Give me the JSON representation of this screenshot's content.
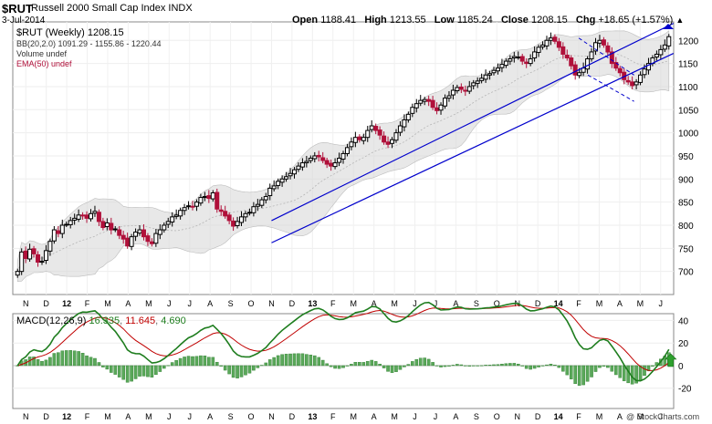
{
  "header": {
    "symbol": "$RUT",
    "name": "Russell 2000 Small Cap Index",
    "exchange": "INDX",
    "date": "3-Jul-2014",
    "open_label": "Open",
    "open": "1188.41",
    "high_label": "High",
    "high": "1213.55",
    "low_label": "Low",
    "low": "1185.24",
    "close_label": "Close",
    "close": "1208.15",
    "chg_label": "Chg",
    "chg": "+18.65 (+1.57%)",
    "chg_arrow": "▲"
  },
  "legend": {
    "price": "$RUT (Weekly) 1208.15",
    "bb": "BB(20,2.0) 1091.29 - 1155.86 - 1220.44",
    "volume": "Volume undef",
    "ema": "EMA(50) undef",
    "macd_title": "MACD(12,26,9)",
    "macd_v1": "16.335",
    "macd_v2": "11.645",
    "macd_v3": "4.690"
  },
  "brand": "@ StockCharts.com",
  "colors": {
    "up": "#000000",
    "down": "#b0103a",
    "band": "#d9d9d9",
    "channel": "#0000cc",
    "macd_line": "#1e7d1e",
    "signal_line": "#c00000",
    "hist": "#5aa85a",
    "ema_legend": "#b0103a"
  },
  "chart_data": [
    {
      "type": "candlestick",
      "title": "$RUT (Weekly) 1208.15",
      "ylim": [
        650,
        1240
      ],
      "y_ticks": [
        700,
        750,
        800,
        850,
        900,
        950,
        1000,
        1050,
        1100,
        1150,
        1200
      ],
      "x_month_labels": [
        "N",
        "D",
        "12",
        "F",
        "M",
        "A",
        "M",
        "J",
        "J",
        "A",
        "S",
        "O",
        "N",
        "D",
        "13",
        "F",
        "M",
        "A",
        "M",
        "J",
        "J",
        "A",
        "S",
        "O",
        "N",
        "D",
        "14",
        "F",
        "M",
        "A",
        "M",
        "J"
      ],
      "weekly_close": [
        700,
        742,
        728,
        748,
        738,
        720,
        722,
        745,
        765,
        790,
        782,
        800,
        802,
        810,
        815,
        822,
        820,
        815,
        825,
        830,
        808,
        795,
        805,
        790,
        792,
        778,
        770,
        755,
        775,
        785,
        790,
        775,
        765,
        760,
        782,
        790,
        800,
        808,
        818,
        822,
        832,
        838,
        842,
        840,
        850,
        860,
        862,
        858,
        870,
        835,
        830,
        820,
        810,
        798,
        808,
        818,
        825,
        828,
        840,
        845,
        855,
        862,
        880,
        885,
        895,
        900,
        905,
        912,
        920,
        928,
        935,
        938,
        945,
        950,
        948,
        940,
        932,
        928,
        935,
        945,
        955,
        968,
        980,
        990,
        985,
        990,
        1005,
        1015,
        1005,
        995,
        980,
        975,
        985,
        1000,
        1015,
        1028,
        1040,
        1055,
        1063,
        1070,
        1072,
        1068,
        1055,
        1048,
        1060,
        1075,
        1080,
        1092,
        1098,
        1094,
        1090,
        1100,
        1108,
        1112,
        1118,
        1125,
        1128,
        1135,
        1140,
        1148,
        1155,
        1160,
        1165,
        1164,
        1155,
        1150,
        1160,
        1175,
        1185,
        1190,
        1200,
        1205,
        1198,
        1185,
        1170,
        1162,
        1145,
        1125,
        1130,
        1140,
        1160,
        1175,
        1195,
        1200,
        1190,
        1175,
        1150,
        1140,
        1130,
        1115,
        1110,
        1102,
        1110,
        1125,
        1138,
        1150,
        1162,
        1170,
        1180,
        1190,
        1208
      ],
      "bollinger": {
        "period": 20,
        "stdev": 2.0,
        "lower": 1091.29,
        "middle": 1155.86,
        "upper": 1220.44
      },
      "trend_lines": [
        {
          "name": "channel-upper",
          "points": [
            [
              "2012-11",
              810
            ],
            [
              "2014-07",
              1225
            ]
          ]
        },
        {
          "name": "channel-lower",
          "points": [
            [
              "2012-11",
              762
            ],
            [
              "2014-07",
              1160
            ]
          ]
        }
      ]
    },
    {
      "type": "macd",
      "title": "MACD(12,26,9)",
      "ylim": [
        -38,
        46
      ],
      "y_ticks": [
        -20,
        0,
        20,
        40
      ],
      "series": [
        {
          "name": "MACD",
          "value": 16.335
        },
        {
          "name": "Signal",
          "value": 11.645
        },
        {
          "name": "Histogram",
          "value": 4.69
        }
      ]
    }
  ]
}
